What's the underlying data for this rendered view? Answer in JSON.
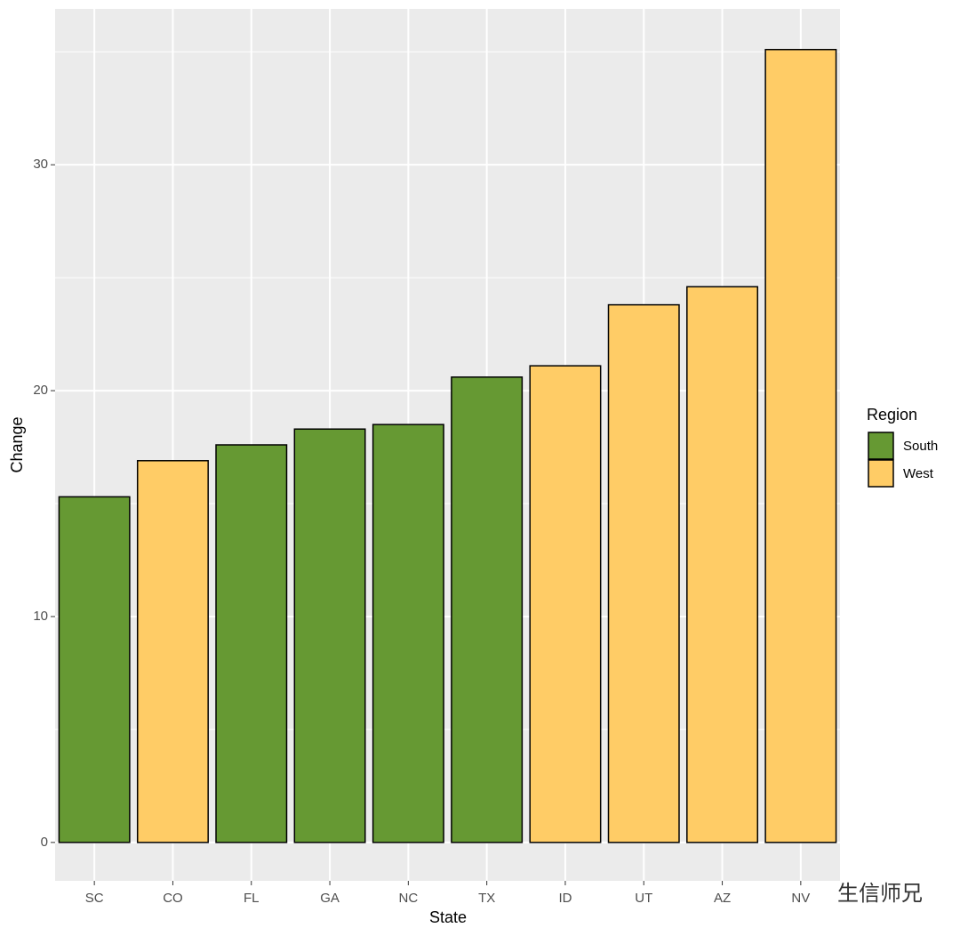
{
  "chart_data": {
    "type": "bar",
    "x_label": "State",
    "y_label": "Change",
    "categories": [
      "SC",
      "CO",
      "FL",
      "GA",
      "NC",
      "TX",
      "ID",
      "UT",
      "AZ",
      "NV"
    ],
    "series": [
      {
        "name": "South",
        "color": "#669933",
        "values": [
          15.3,
          null,
          17.6,
          18.3,
          18.5,
          20.6,
          null,
          null,
          null,
          null
        ]
      },
      {
        "name": "West",
        "color": "#FFCC66",
        "values": [
          null,
          16.9,
          null,
          null,
          null,
          null,
          21.1,
          23.8,
          24.6,
          35.1
        ]
      }
    ],
    "legend_title": "Region",
    "legend_position": "right",
    "ylim": [
      -1.7,
      36.9
    ],
    "yticks": [
      0,
      10,
      20,
      30
    ],
    "minor_yticks": [
      5,
      15,
      25,
      35
    ],
    "grid": true,
    "watermark": "生信师兄"
  }
}
